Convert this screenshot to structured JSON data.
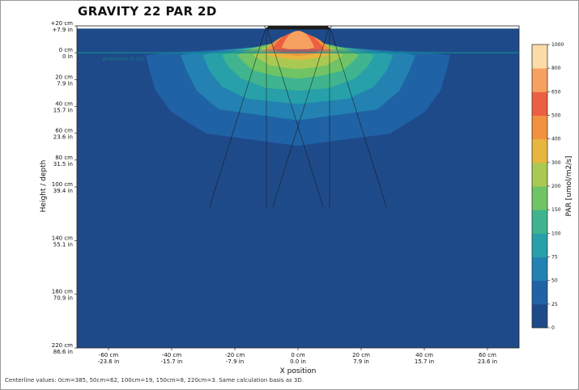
{
  "title": "GRAVITY 22 PAR 2D",
  "footer": "Centerline values: 0cm=385, 50cm=62, 100cm=19, 150cm=8, 220cm=3. Same calculation basis as 3D.",
  "chart_data": {
    "type": "heatmap",
    "title": "GRAVITY 22 PAR 2D",
    "xlabel": "X position",
    "ylabel": "Height / depth",
    "colorbar_label": "PAR [umol/m2/s]",
    "xlim": [
      -70,
      70
    ],
    "ylim": [
      -220,
      20
    ],
    "x_ticks": [
      {
        "value": -60,
        "cm": "-60 cm",
        "in": "-23.6 in"
      },
      {
        "value": -40,
        "cm": "-40 cm",
        "in": "-15.7 in"
      },
      {
        "value": -20,
        "cm": "-20 cm",
        "in": "-7.9 in"
      },
      {
        "value": 0,
        "cm": "0 cm",
        "in": "0.0 in"
      },
      {
        "value": 20,
        "cm": "20 cm",
        "in": "7.9 in"
      },
      {
        "value": 40,
        "cm": "40 cm",
        "in": "15.7 in"
      },
      {
        "value": 60,
        "cm": "60 cm",
        "in": "23.6 in"
      }
    ],
    "y_ticks": [
      {
        "value": 20,
        "cm": "+20 cm",
        "in": "+7.9 in"
      },
      {
        "value": 0,
        "cm": "0 cm",
        "in": "0 in"
      },
      {
        "value": -20,
        "cm": "20 cm",
        "in": "7.9 in"
      },
      {
        "value": -40,
        "cm": "40 cm",
        "in": "15.7 in"
      },
      {
        "value": -60,
        "cm": "60 cm",
        "in": "23.6 in"
      },
      {
        "value": -80,
        "cm": "80 cm",
        "in": "31.5 in"
      },
      {
        "value": -100,
        "cm": "100 cm",
        "in": "39.4 in"
      },
      {
        "value": -140,
        "cm": "140 cm",
        "in": "55.1 in"
      },
      {
        "value": -180,
        "cm": "180 cm",
        "in": "70.9 in"
      },
      {
        "value": -220,
        "cm": "220 cm",
        "in": "86.6 in"
      }
    ],
    "waterline_label": "waterline 0 cm",
    "waterline_depth": 0,
    "levels": [
      0,
      25,
      50,
      75,
      100,
      150,
      200,
      300,
      400,
      500,
      650,
      800,
      1000
    ],
    "level_colors": [
      "#1f4a8a",
      "#2062a6",
      "#2382b1",
      "#27a0a9",
      "#3fb48e",
      "#70c465",
      "#a9c952",
      "#e6b640",
      "#f0923f",
      "#ec5f42",
      "#f7a161",
      "#fbdca6"
    ],
    "centerline": [
      {
        "depth_cm": 0,
        "par": 385
      },
      {
        "depth_cm": 50,
        "par": 62
      },
      {
        "depth_cm": 100,
        "par": 19
      },
      {
        "depth_cm": 150,
        "par": 8
      },
      {
        "depth_cm": 220,
        "par": 3
      }
    ],
    "contours": [
      {
        "level": 25,
        "half_width": [
          48,
          47,
          45,
          40,
          29,
          0
        ],
        "depth": [
          -2,
          -12,
          -28,
          -44,
          -60,
          -69
        ],
        "y_top": 3
      },
      {
        "level": 50,
        "half_width": [
          37,
          35,
          32,
          25,
          0
        ],
        "depth": [
          -2,
          -14,
          -28,
          -42,
          -50
        ],
        "y_top": 4
      },
      {
        "level": 75,
        "half_width": [
          30,
          28,
          24,
          16,
          0
        ],
        "depth": [
          -2,
          -13,
          -25,
          -34,
          -38
        ],
        "y_top": 5
      },
      {
        "level": 100,
        "half_width": [
          24,
          22,
          18,
          10,
          0
        ],
        "depth": [
          -2,
          -10,
          -19,
          -26,
          -28
        ],
        "y_top": 6
      },
      {
        "level": 150,
        "half_width": [
          19,
          17,
          14,
          7,
          0
        ],
        "depth": [
          -2,
          -7,
          -13,
          -17,
          -19
        ],
        "y_top": 8
      },
      {
        "level": 200,
        "half_width": [
          14,
          12,
          9,
          4,
          0
        ],
        "depth": [
          -2,
          -5,
          -9,
          -11,
          -12
        ],
        "y_top": 10
      },
      {
        "level": 300,
        "half_width": [
          11,
          9,
          5,
          0
        ],
        "depth": [
          0,
          -2,
          -4,
          -5
        ],
        "y_top": 12
      },
      {
        "level": 400,
        "half_width": [
          10,
          8,
          4,
          0
        ],
        "depth": [
          2,
          0,
          -1,
          -2
        ],
        "y_top": 14
      },
      {
        "level": 500,
        "half_width": [
          8,
          6,
          3,
          0
        ],
        "depth": [
          3,
          1,
          0,
          0
        ],
        "y_top": 15
      },
      {
        "level": 650,
        "half_width": [
          5,
          3,
          0
        ],
        "depth": [
          4,
          3,
          3
        ],
        "y_top": 16
      }
    ],
    "surface_spread_half_width": 50,
    "fixture": {
      "x_min": -10,
      "x_max": 10,
      "height_cm": 21
    },
    "beam_lines": [
      {
        "from": [
          -10,
          20
        ],
        "to": [
          -28,
          -115
        ]
      },
      {
        "from": [
          -10,
          20
        ],
        "to": [
          8,
          -115
        ]
      },
      {
        "from": [
          -10,
          20
        ],
        "to": [
          -10,
          -115
        ]
      },
      {
        "from": [
          10,
          20
        ],
        "to": [
          -8,
          -115
        ]
      },
      {
        "from": [
          10,
          20
        ],
        "to": [
          28,
          -115
        ]
      },
      {
        "from": [
          10,
          20
        ],
        "to": [
          10,
          -115
        ]
      }
    ]
  }
}
